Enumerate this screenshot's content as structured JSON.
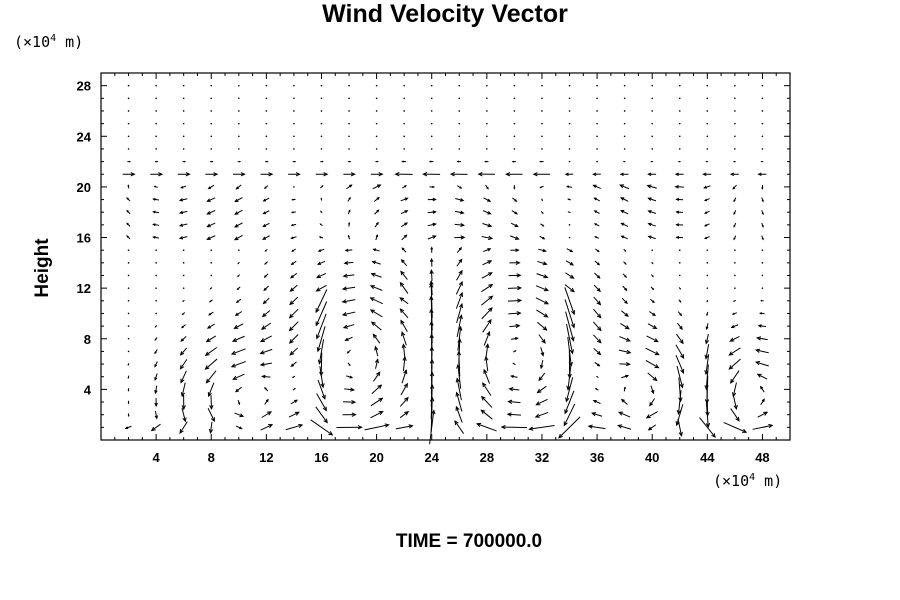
{
  "chart_data": {
    "type": "vector-field",
    "title": "Wind Velocity Vector",
    "ylabel": "Height",
    "y_unit": {
      "prefix": "(×10",
      "exp": "4",
      "suffix": " m)"
    },
    "x_unit": {
      "prefix": "(×10",
      "exp": "4",
      "suffix": " m)"
    },
    "footer": "TIME = 700000.0",
    "xlim": [
      0,
      50
    ],
    "ylim": [
      0,
      29
    ],
    "x_ticks": [
      "4",
      "8",
      "12",
      "16",
      "20",
      "24",
      "28",
      "32",
      "36",
      "40",
      "44",
      "48"
    ],
    "y_ticks": [
      "4",
      "8",
      "12",
      "16",
      "20",
      "24",
      "28"
    ],
    "grid": false,
    "arrow_color": "#000000",
    "grid_x_step": 2,
    "grid_y_levels": [
      1,
      2,
      3,
      4,
      5,
      6,
      7,
      8,
      9,
      10,
      11,
      12,
      13,
      14,
      15,
      16,
      17,
      18,
      19,
      20,
      21,
      22,
      23,
      24,
      25,
      26,
      27,
      28
    ]
  }
}
